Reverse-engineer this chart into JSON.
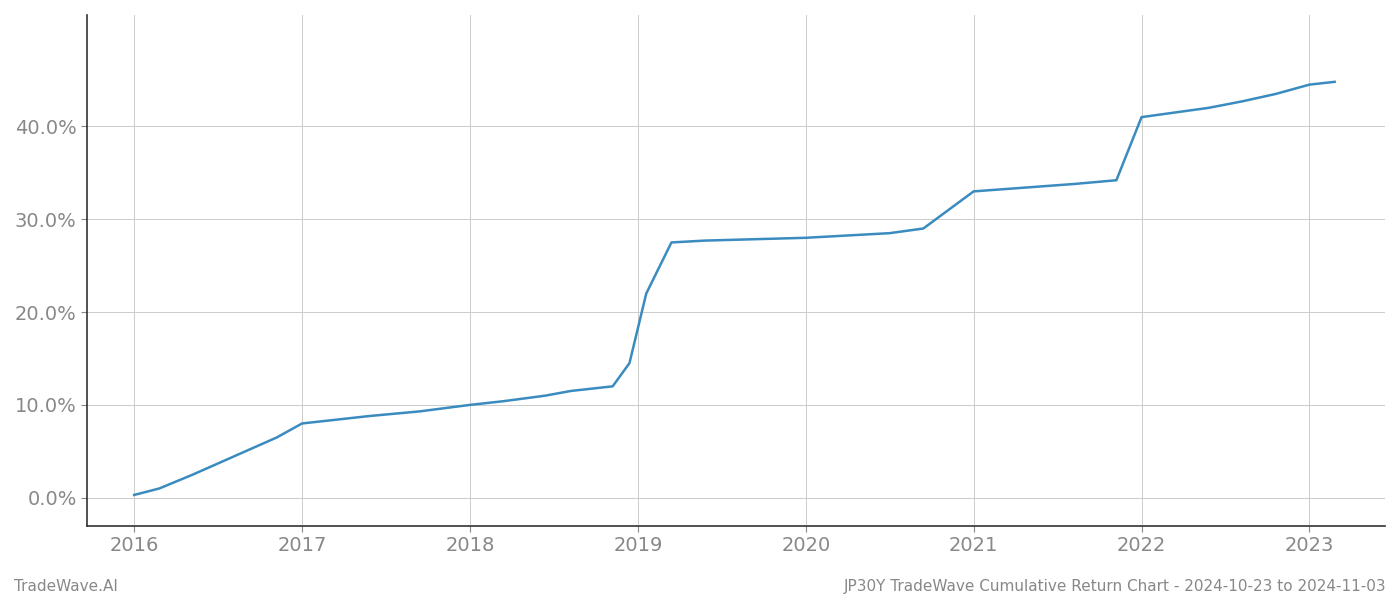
{
  "x": [
    2016.0,
    2016.15,
    2016.35,
    2016.6,
    2016.85,
    2017.0,
    2017.15,
    2017.4,
    2017.7,
    2018.0,
    2018.2,
    2018.45,
    2018.6,
    2018.75,
    2018.85,
    2018.95,
    2019.05,
    2019.2,
    2019.4,
    2019.6,
    2019.8,
    2020.0,
    2020.2,
    2020.5,
    2020.7,
    2021.0,
    2021.3,
    2021.6,
    2021.85,
    2022.0,
    2022.2,
    2022.4,
    2022.6,
    2022.8,
    2023.0,
    2023.15
  ],
  "y": [
    0.3,
    1.0,
    2.5,
    4.5,
    6.5,
    8.0,
    8.3,
    8.8,
    9.3,
    10.0,
    10.4,
    11.0,
    11.5,
    11.8,
    12.0,
    14.5,
    22.0,
    27.5,
    27.7,
    27.8,
    27.9,
    28.0,
    28.2,
    28.5,
    29.0,
    33.0,
    33.4,
    33.8,
    34.2,
    41.0,
    41.5,
    42.0,
    42.7,
    43.5,
    44.5,
    44.8
  ],
  "line_color": "#3a8bbf",
  "line_width": 1.8,
  "background_color": "#ffffff",
  "grid_color": "#cccccc",
  "tick_color": "#888888",
  "xlim": [
    2015.72,
    2023.45
  ],
  "ylim": [
    -3,
    52
  ],
  "yticks": [
    0.0,
    10.0,
    20.0,
    30.0,
    40.0
  ],
  "ytick_labels": [
    "0.0%",
    "10.0%",
    "20.0%",
    "30.0%",
    "40.0%"
  ],
  "xticks": [
    2016,
    2017,
    2018,
    2019,
    2020,
    2021,
    2022,
    2023
  ],
  "xtick_labels": [
    "2016",
    "2017",
    "2018",
    "2019",
    "2020",
    "2021",
    "2022",
    "2023"
  ],
  "footer_left": "TradeWave.AI",
  "footer_right": "JP30Y TradeWave Cumulative Return Chart - 2024-10-23 to 2024-11-03",
  "footer_color": "#888888",
  "footer_fontsize": 11,
  "tick_fontsize": 14
}
